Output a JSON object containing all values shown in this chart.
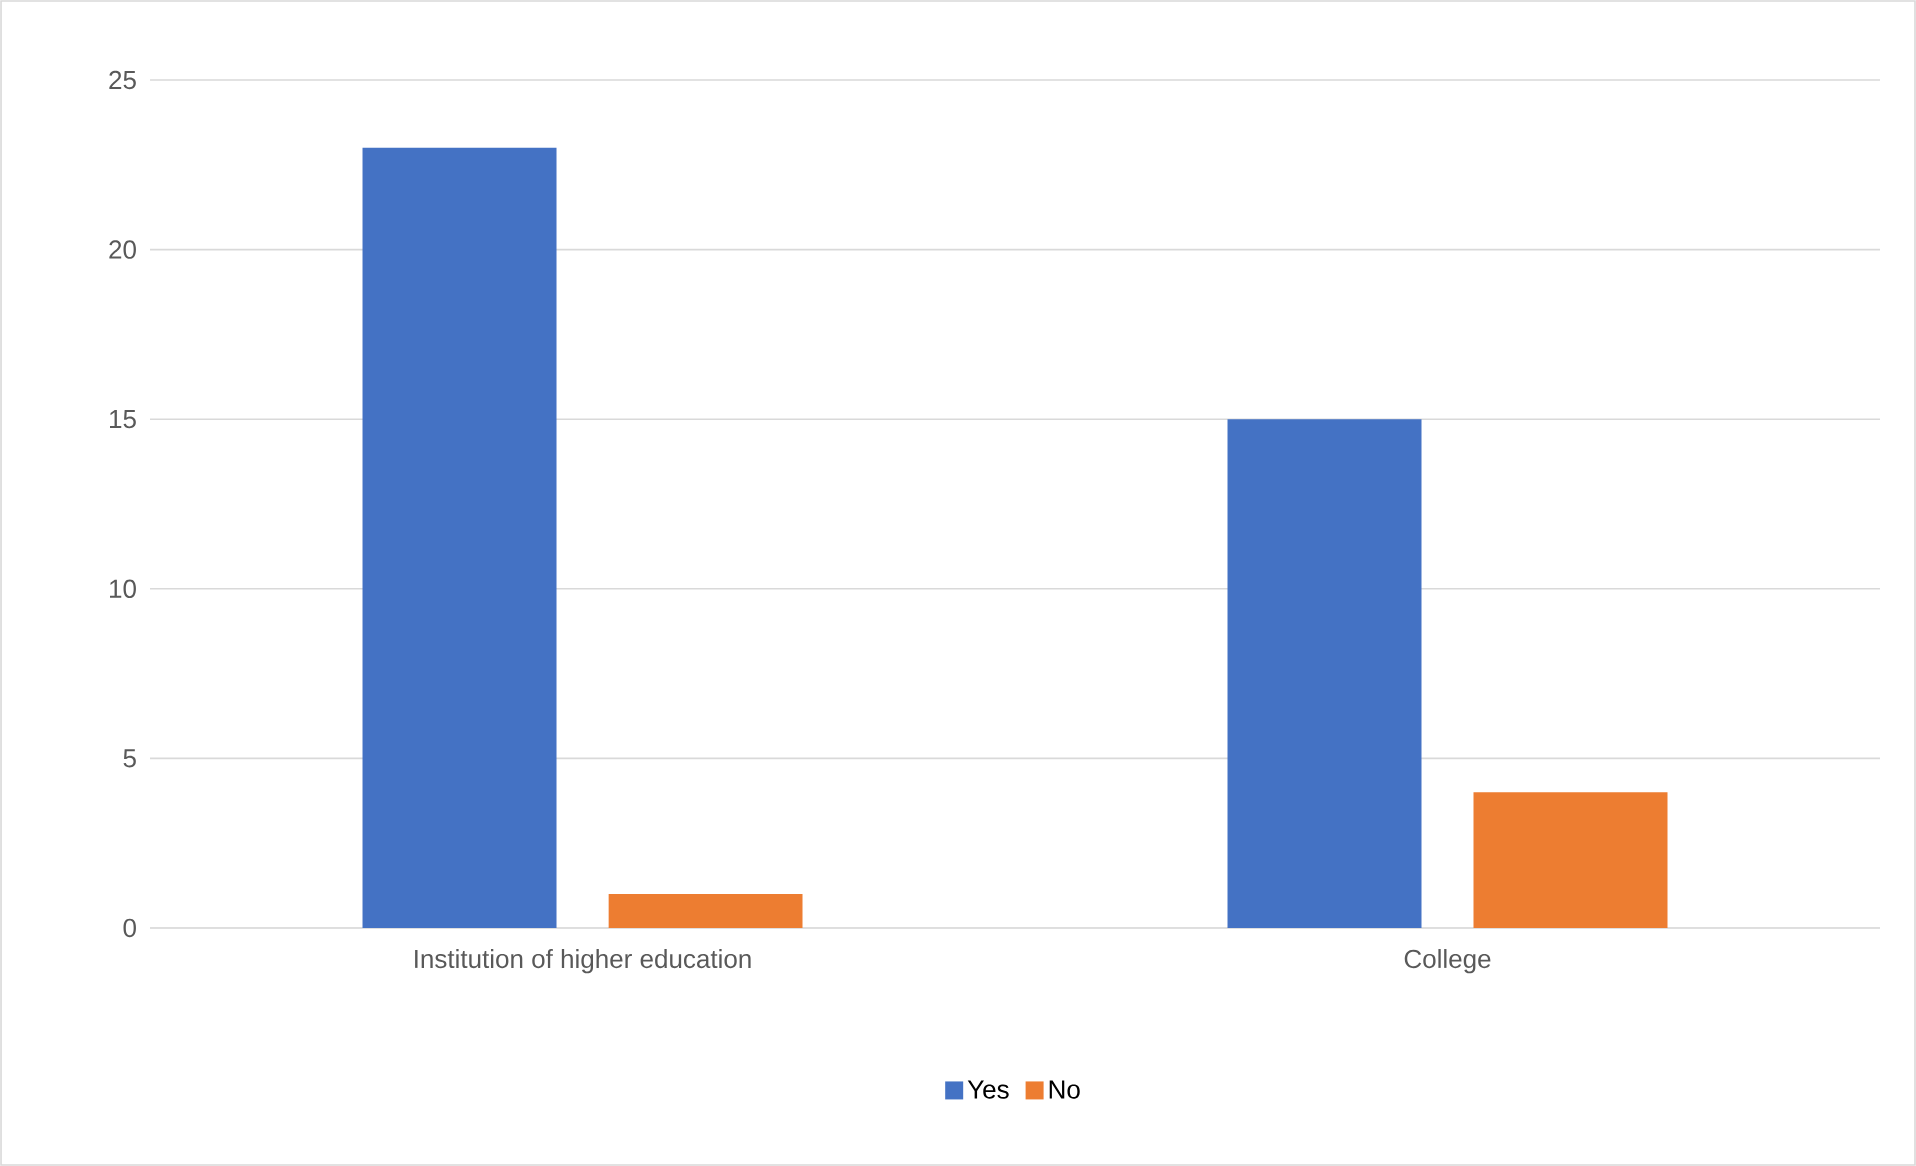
{
  "chart_data": {
    "type": "bar",
    "categories": [
      "Institution of higher education",
      "College"
    ],
    "series": [
      {
        "name": "Yes",
        "color": "#4472c4",
        "values": [
          23,
          15
        ]
      },
      {
        "name": "No",
        "color": "#ed7d31",
        "values": [
          1,
          4
        ]
      }
    ],
    "ylim": [
      0,
      25
    ],
    "yticks": [
      0,
      5,
      10,
      15,
      20,
      25
    ],
    "grid": "y",
    "legend": "bottom"
  }
}
